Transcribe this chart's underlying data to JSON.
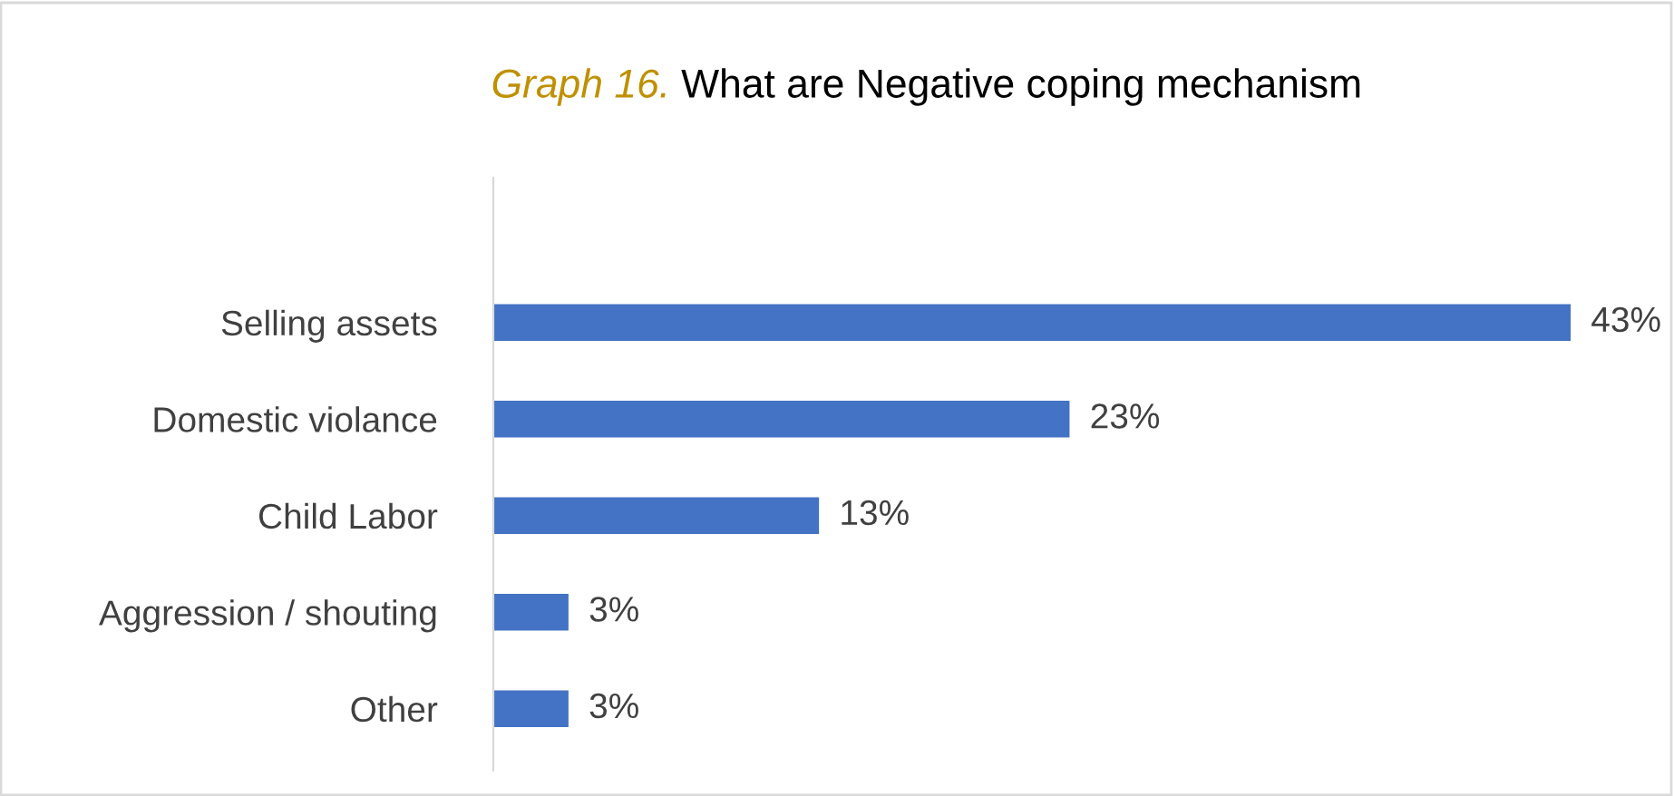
{
  "chart_data": {
    "type": "bar",
    "orientation": "horizontal",
    "subtitle": "Graph 16.",
    "title": "What are Negative coping mechanism",
    "categories": [
      "Selling assets",
      "Domestic violance",
      "Child Labor",
      "Aggression / shouting",
      "Other"
    ],
    "values": [
      43,
      23,
      13,
      3,
      3
    ],
    "value_labels": [
      "43%",
      "23%",
      "13%",
      "3%",
      "3%"
    ],
    "color": "#4472c4",
    "grid": false,
    "legend": false
  }
}
